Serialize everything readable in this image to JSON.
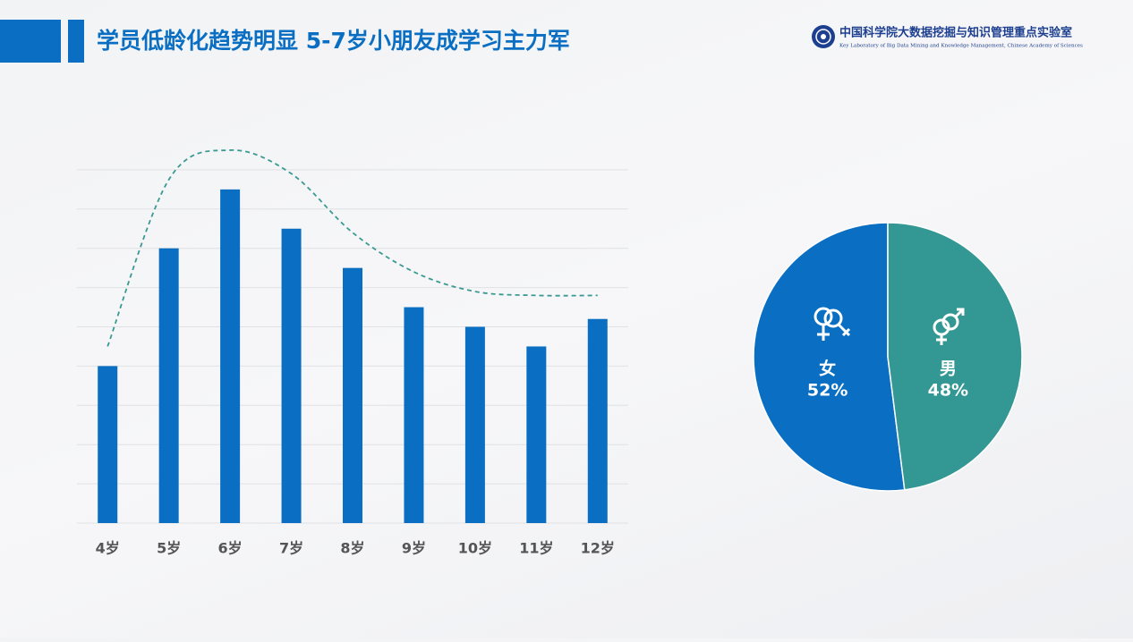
{
  "header": {
    "title": "学员低龄化趋势明显 5-7岁小朋友成学习主力军",
    "org_name": "中国科学院大数据挖掘与知识管理重点实验室",
    "org_name_en": "Key Laboratory of Big Data Mining and Knowledge Management, Chinese Academy of Sciences"
  },
  "chart_data": [
    {
      "type": "bar",
      "categories": [
        "4岁",
        "5岁",
        "6岁",
        "7岁",
        "8岁",
        "9岁",
        "10岁",
        "11岁",
        "12岁"
      ],
      "values": [
        4.0,
        7.0,
        8.5,
        7.5,
        6.5,
        5.5,
        5.0,
        4.5,
        5.2
      ],
      "color": "#0a6fc2",
      "ylim": [
        0,
        10
      ],
      "yticks": [
        0,
        1,
        2,
        3,
        4,
        5,
        6,
        7,
        8,
        9
      ],
      "grid": true,
      "trend": {
        "values": [
          4.5,
          8.75,
          9.5,
          8.9,
          7.4,
          6.4,
          5.9,
          5.8,
          5.8
        ],
        "color": "#3a9a92",
        "dashed": true,
        "smooth": true
      }
    },
    {
      "type": "pie",
      "categories": [
        "女",
        "男"
      ],
      "values": [
        52,
        48
      ],
      "value_labels": [
        "52%",
        "48%"
      ],
      "colors": [
        "#0a6fc2",
        "#339793"
      ]
    }
  ]
}
